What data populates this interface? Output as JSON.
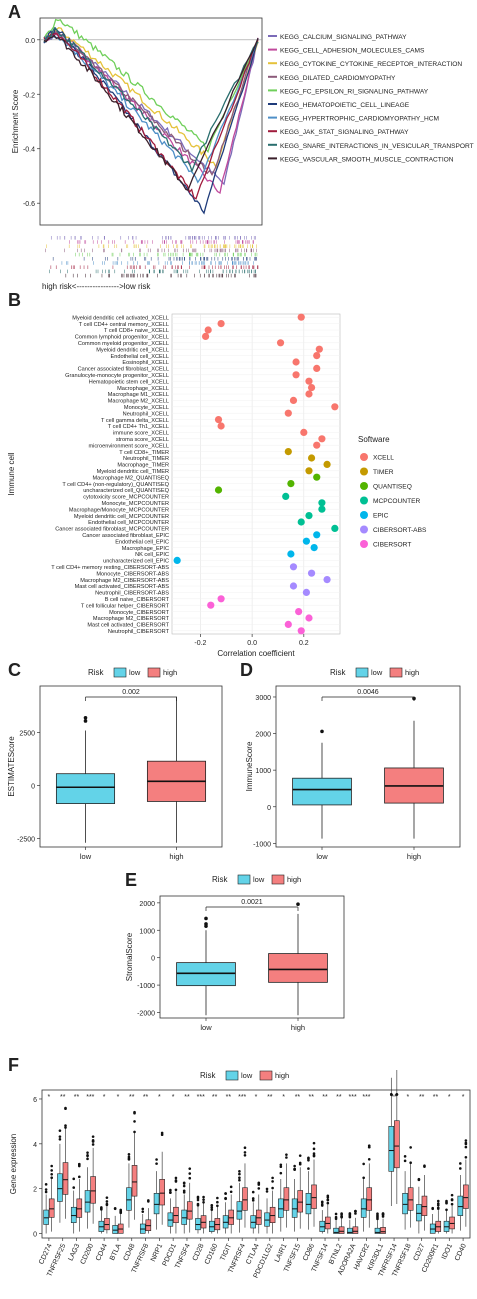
{
  "panels": {
    "A": "A",
    "B": "B",
    "C": "C",
    "D": "D",
    "E": "E",
    "F": "F"
  },
  "colors": {
    "low": "#63d3e8",
    "high": "#f47f7f",
    "xcell": "#f8766d",
    "timer": "#c49a00",
    "quantiseq": "#53b400",
    "mcpcounter": "#00c094",
    "epic": "#00b6eb",
    "cibersort_abs": "#a58aff",
    "cibersort": "#fb61d7"
  },
  "chart_data": [
    {
      "type": "line",
      "panel": "A",
      "ylabel": "Enrichment Score",
      "xlabel": "high risk<---------------->low risk",
      "yticks": [
        "0.0",
        "-0.2",
        "-0.4",
        "-0.6"
      ],
      "ylim": [
        -0.68,
        0.08
      ],
      "series": [
        {
          "name": "KEGG_CALCIUM_SIGNALING_PATHWAY",
          "color": "#7b6bb8",
          "min": -0.53
        },
        {
          "name": "KEGG_CELL_ADHESION_MOLECULES_CAMS",
          "color": "#c0499c",
          "min": -0.56
        },
        {
          "name": "KEGG_CYTOKINE_CYTOKINE_RECEPTOR_INTERACTION",
          "color": "#e5c23a",
          "min": -0.46
        },
        {
          "name": "KEGG_DILATED_CARDIOMYOPATHY",
          "color": "#8b5a7a",
          "min": -0.5
        },
        {
          "name": "KEGG_FC_EPSILON_RI_SIGNALING_PATHWAY",
          "color": "#6fcf5a",
          "min": -0.4
        },
        {
          "name": "KEGG_HEMATOPOIETIC_CELL_LINEAGE",
          "color": "#1f3b7a",
          "min": -0.63
        },
        {
          "name": "KEGG_HYPERTROPHIC_CARDIOMYOPATHY_HCM",
          "color": "#4e8fc7",
          "min": -0.52
        },
        {
          "name": "KEGG_JAK_STAT_SIGNALING_PATHWAY",
          "color": "#a01c3c",
          "min": -0.58
        },
        {
          "name": "KEGG_SNARE_INTERACTIONS_IN_VESICULAR_TRANSPORT",
          "color": "#2a6e6e",
          "min": -0.47
        },
        {
          "name": "KEGG_VASCULAR_SMOOTH_MUSCLE_CONTRACTION",
          "color": "#3a1f2a",
          "min": -0.55
        }
      ]
    },
    {
      "type": "scatter",
      "panel": "B",
      "xlabel": "Correlation coefficient",
      "ylabel": "Immune cell",
      "xlim": [
        -0.31,
        0.34
      ],
      "xticks": [
        -0.2,
        0.0,
        0.2
      ],
      "legend_title": "Software",
      "legend": [
        "XCELL",
        "TIMER",
        "QUANTISEQ",
        "MCPCOUNTER",
        "EPIC",
        "CIBERSORT-ABS",
        "CIBERSORT"
      ],
      "points": [
        {
          "label": "Myeloid dendritic cell activated_XCELL",
          "x": 0.19,
          "g": "xcell"
        },
        {
          "label": "T cell CD4+ central memory_XCELL",
          "x": -0.12,
          "g": "xcell"
        },
        {
          "label": "T cell CD8+ naive_XCELL",
          "x": -0.17,
          "g": "xcell"
        },
        {
          "label": "Common lymphoid progenitor_XCELL",
          "x": -0.18,
          "g": "xcell"
        },
        {
          "label": "Common myeloid progenitor_XCELL",
          "x": 0.11,
          "g": "xcell"
        },
        {
          "label": "Myeloid dendritic cell_XCELL",
          "x": 0.26,
          "g": "xcell"
        },
        {
          "label": "Endothelial cell_XCELL",
          "x": 0.25,
          "g": "xcell"
        },
        {
          "label": "Eosinophil_XCELL",
          "x": 0.17,
          "g": "xcell"
        },
        {
          "label": "Cancer associated fibroblast_XCELL",
          "x": 0.25,
          "g": "xcell"
        },
        {
          "label": "Granulocyte-monocyte progenitor_XCELL",
          "x": 0.17,
          "g": "xcell"
        },
        {
          "label": "Hematopoietic stem cell_XCELL",
          "x": 0.22,
          "g": "xcell"
        },
        {
          "label": "Macrophage_XCELL",
          "x": 0.23,
          "g": "xcell"
        },
        {
          "label": "Macrophage M1_XCELL",
          "x": 0.22,
          "g": "xcell"
        },
        {
          "label": "Macrophage M2_XCELL",
          "x": 0.16,
          "g": "xcell"
        },
        {
          "label": "Monocyte_XCELL",
          "x": 0.32,
          "g": "xcell"
        },
        {
          "label": "Neutrophil_XCELL",
          "x": 0.14,
          "g": "xcell"
        },
        {
          "label": "T cell gamma delta_XCELL",
          "x": -0.13,
          "g": "xcell"
        },
        {
          "label": "T cell CD4+ Th1_XCELL",
          "x": -0.12,
          "g": "xcell"
        },
        {
          "label": "immune score_XCELL",
          "x": 0.2,
          "g": "xcell"
        },
        {
          "label": "stroma score_XCELL",
          "x": 0.27,
          "g": "xcell"
        },
        {
          "label": "microenvironment score_XCELL",
          "x": 0.25,
          "g": "xcell"
        },
        {
          "label": "T cell CD8+_TIMER",
          "x": 0.14,
          "g": "timer"
        },
        {
          "label": "Neutrophil_TIMER",
          "x": 0.23,
          "g": "timer"
        },
        {
          "label": "Macrophage_TIMER",
          "x": 0.29,
          "g": "timer"
        },
        {
          "label": "Myeloid dendritic cell_TIMER",
          "x": 0.22,
          "g": "timer"
        },
        {
          "label": "Macrophage M2_QUANTISEQ",
          "x": 0.25,
          "g": "quantiseq"
        },
        {
          "label": "T cell CD4+ (non-regulatory)_QUANTISEQ",
          "x": 0.15,
          "g": "quantiseq"
        },
        {
          "label": "uncharacterized cell_QUANTISEQ",
          "x": -0.13,
          "g": "quantiseq"
        },
        {
          "label": "cytotoxicity score_MCPCOUNTER",
          "x": 0.13,
          "g": "mcpcounter"
        },
        {
          "label": "Monocyte_MCPCOUNTER",
          "x": 0.27,
          "g": "mcpcounter"
        },
        {
          "label": "Macrophage/Monocyte_MCPCOUNTER",
          "x": 0.27,
          "g": "mcpcounter"
        },
        {
          "label": "Myeloid dendritic cell_MCPCOUNTER",
          "x": 0.22,
          "g": "mcpcounter"
        },
        {
          "label": "Endothelial cell_MCPCOUNTER",
          "x": 0.19,
          "g": "mcpcounter"
        },
        {
          "label": "Cancer associated fibroblast_MCPCOUNTER",
          "x": 0.32,
          "g": "mcpcounter"
        },
        {
          "label": "Cancer associated fibroblast_EPIC",
          "x": 0.25,
          "g": "epic"
        },
        {
          "label": "Endothelial cell_EPIC",
          "x": 0.21,
          "g": "epic"
        },
        {
          "label": "Macrophage_EPIC",
          "x": 0.24,
          "g": "epic"
        },
        {
          "label": "NK cell_EPIC",
          "x": 0.15,
          "g": "epic"
        },
        {
          "label": "uncharacterized cell_EPIC",
          "x": -0.29,
          "g": "epic"
        },
        {
          "label": "T cell CD4+ memory resting_CIBERSORT-ABS",
          "x": 0.16,
          "g": "cibersort_abs"
        },
        {
          "label": "Monocyte_CIBERSORT-ABS",
          "x": 0.23,
          "g": "cibersort_abs"
        },
        {
          "label": "Macrophage M2_CIBERSORT-ABS",
          "x": 0.29,
          "g": "cibersort_abs"
        },
        {
          "label": "Mast cell activated_CIBERSORT-ABS",
          "x": 0.16,
          "g": "cibersort_abs"
        },
        {
          "label": "Neutrophil_CIBERSORT-ABS",
          "x": 0.21,
          "g": "cibersort_abs"
        },
        {
          "label": "B cell naive_CIBERSORT",
          "x": -0.12,
          "g": "cibersort"
        },
        {
          "label": "T cell follicular helper_CIBERSORT",
          "x": -0.16,
          "g": "cibersort"
        },
        {
          "label": "Monocyte_CIBERSORT",
          "x": 0.18,
          "g": "cibersort"
        },
        {
          "label": "Macrophage M2_CIBERSORT",
          "x": 0.22,
          "g": "cibersort"
        },
        {
          "label": "Mast cell activated_CIBERSORT",
          "x": 0.14,
          "g": "cibersort"
        },
        {
          "label": "Neutrophil_CIBERSORT",
          "x": 0.19,
          "g": "cibersort"
        }
      ]
    },
    {
      "type": "box",
      "panel": "C",
      "legend_title": "Risk",
      "legend": [
        "low",
        "high"
      ],
      "categories": [
        "low",
        "high"
      ],
      "ylabel": "ESTIMATEScore",
      "ylim": [
        -2900,
        4700
      ],
      "yticks": [
        -2500,
        0,
        2500
      ],
      "pvalue": "0.002",
      "boxes": [
        {
          "min": -2700,
          "q1": -850,
          "median": -80,
          "q3": 560,
          "max": 2600,
          "outliers": [
            3200,
            3050
          ]
        },
        {
          "min": -2700,
          "q1": -750,
          "median": 200,
          "q3": 1150,
          "max": 4200,
          "outliers": []
        }
      ]
    },
    {
      "type": "box",
      "panel": "D",
      "legend_title": "Risk",
      "legend": [
        "low",
        "high"
      ],
      "categories": [
        "low",
        "high"
      ],
      "ylabel": "ImmuneScore",
      "ylim": [
        -1100,
        3300
      ],
      "yticks": [
        -1000,
        0,
        1000,
        2000,
        3000
      ],
      "pvalue": "0.0046",
      "boxes": [
        {
          "min": -870,
          "q1": 50,
          "median": 470,
          "q3": 780,
          "max": 1750,
          "outliers": [
            2060
          ]
        },
        {
          "min": -870,
          "q1": 100,
          "median": 570,
          "q3": 1060,
          "max": 2350,
          "outliers": [
            2960
          ]
        }
      ]
    },
    {
      "type": "box",
      "panel": "E",
      "legend_title": "Risk",
      "legend": [
        "low",
        "high"
      ],
      "categories": [
        "low",
        "high"
      ],
      "ylabel": "StromalScore",
      "ylim": [
        -2200,
        2250
      ],
      "yticks": [
        -2000,
        -1000,
        0,
        1000,
        2000
      ],
      "pvalue": "0.0021",
      "boxes": [
        {
          "min": -2100,
          "q1": -1020,
          "median": -570,
          "q3": -180,
          "max": 1000,
          "outliers": [
            1430,
            1230,
            1150
          ]
        },
        {
          "min": -2100,
          "q1": -900,
          "median": -430,
          "q3": 150,
          "max": 1600,
          "outliers": [
            1950
          ]
        }
      ]
    },
    {
      "type": "box",
      "panel": "F",
      "legend_title": "Risk",
      "legend": [
        "low",
        "high"
      ],
      "ylabel": "Gene expression",
      "ylim": [
        -0.2,
        6.4
      ],
      "yticks": [
        0,
        2,
        4,
        6
      ],
      "genes": [
        "CD274",
        "TNFRSF25",
        "LAG3",
        "CD200",
        "CD44",
        "BTLA",
        "CD48",
        "TNFRSF8",
        "NRP1",
        "PDCD1",
        "TNFSF4",
        "CD28",
        "CD160",
        "TIGIT",
        "TNFRSF4",
        "CTLA4",
        "PDCD1LG2",
        "LAIR1",
        "TNFSF15",
        "CD86",
        "TNFSF14",
        "BTNL2",
        "ADORA2A",
        "HAVCR2",
        "KIR3DL1",
        "TNFRSF14",
        "TNFRSF18",
        "CD27",
        "CD200R1",
        "IDO1",
        "CD40"
      ],
      "signif": [
        "*",
        "**",
        "**",
        "***",
        "*",
        "*",
        "**",
        "**",
        "*",
        "*",
        "**",
        "***",
        "**",
        "**",
        "***",
        "*",
        "**",
        "*",
        "**",
        "**",
        "**",
        "**",
        "***",
        "***",
        "",
        "**",
        "*",
        "**",
        "**",
        "*",
        "*"
      ],
      "low_median": [
        0.7,
        2.0,
        0.8,
        1.4,
        0.3,
        0.15,
        1.5,
        0.2,
        1.3,
        0.6,
        0.7,
        0.4,
        0.3,
        0.5,
        1.0,
        0.5,
        0.6,
        1.1,
        1.1,
        1.3,
        0.3,
        0.05,
        0.05,
        1.1,
        0.05,
        3.7,
        1.3,
        0.9,
        0.2,
        0.3,
        1.2
      ],
      "high_median": [
        1.1,
        2.4,
        1.1,
        1.9,
        0.4,
        0.2,
        2.3,
        0.35,
        1.8,
        0.8,
        1.0,
        0.5,
        0.4,
        0.7,
        1.5,
        0.7,
        0.8,
        1.5,
        1.4,
        1.6,
        0.45,
        0.1,
        0.1,
        1.5,
        0.08,
        3.9,
        1.5,
        1.2,
        0.3,
        0.45,
        1.6
      ]
    }
  ]
}
